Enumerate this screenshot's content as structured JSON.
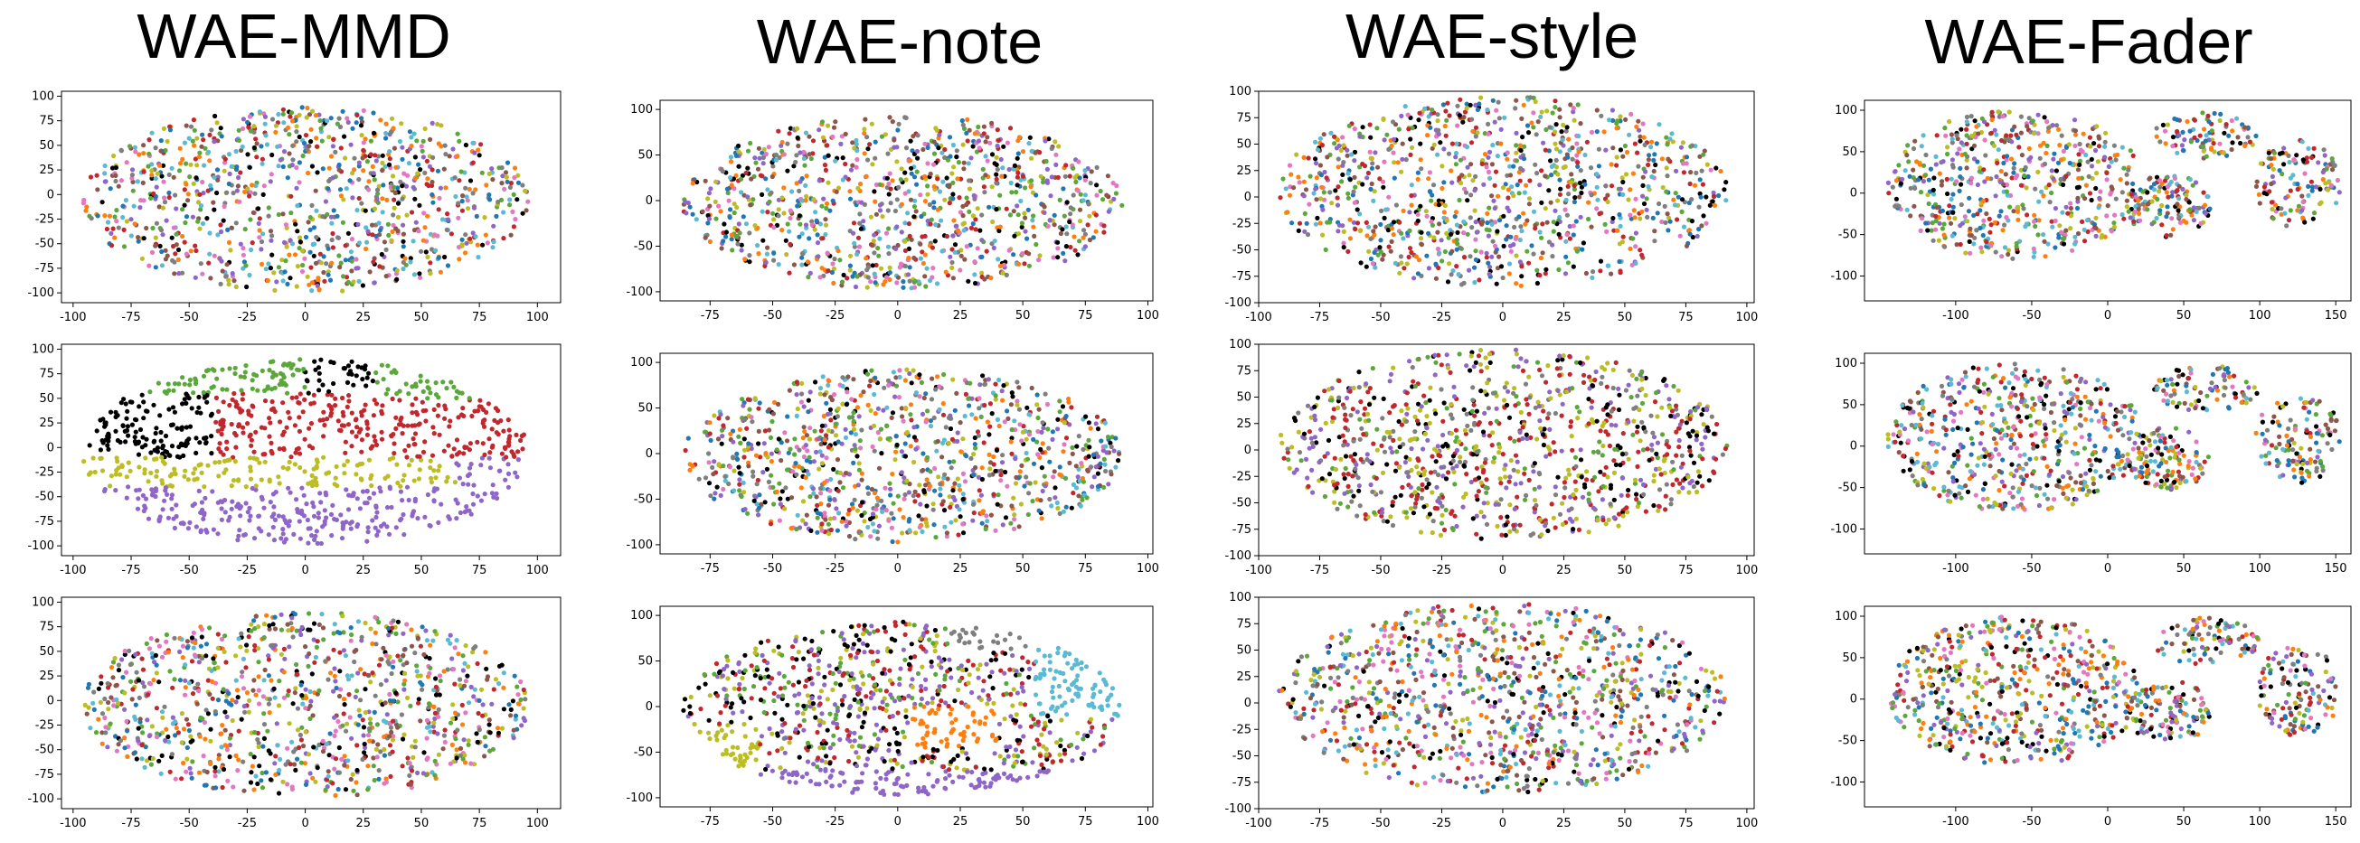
{
  "figure": {
    "columns": [
      "WAE-MMD",
      "WAE-note",
      "WAE-style",
      "WAE-Fader"
    ]
  },
  "colors": {
    "palette": [
      "#1f77b4",
      "#ff7f0e",
      "#2ca02c",
      "#d62728",
      "#9467bd",
      "#8c564b",
      "#e377c2",
      "#7f7f7f",
      "#bcbd22",
      "#17becf"
    ],
    "black": "#000000",
    "green": "#5aa73a",
    "red": "#c1272d",
    "purple": "#8f66c8",
    "olive": "#bcbd22",
    "cyan": "#5bbad3",
    "gray": "#7f7f7f",
    "brown": "#8c564b",
    "orange": "#ff7f0e",
    "pink": "#e377c2",
    "blue": "#1f77b4"
  },
  "chart_data": [
    {
      "type": "scatter",
      "column": "WAE-MMD",
      "row": 1,
      "coloring": "mixed",
      "xlim": [
        -105,
        110
      ],
      "ylim": [
        -110,
        105
      ],
      "x_ticks": [
        -100,
        -75,
        -50,
        -25,
        0,
        25,
        50,
        75,
        100
      ],
      "y_ticks": [
        100,
        75,
        50,
        25,
        0,
        -25,
        -50,
        -75,
        -100
      ]
    },
    {
      "type": "scatter",
      "column": "WAE-note",
      "row": 1,
      "coloring": "mixed",
      "xlim": [
        -95,
        102
      ],
      "ylim": [
        -110,
        110
      ],
      "x_ticks": [
        -75,
        -50,
        -25,
        0,
        25,
        50,
        75,
        100
      ],
      "y_ticks": [
        100,
        50,
        0,
        -50,
        -100
      ]
    },
    {
      "type": "scatter",
      "column": "WAE-style",
      "row": 1,
      "coloring": "mixed",
      "xlim": [
        -100,
        103
      ],
      "ylim": [
        -100,
        100
      ],
      "x_ticks": [
        -100,
        -75,
        -50,
        -25,
        0,
        25,
        50,
        75,
        100
      ],
      "y_ticks": [
        100,
        75,
        50,
        25,
        0,
        -25,
        -50,
        -75,
        -100
      ]
    },
    {
      "type": "scatter",
      "column": "WAE-Fader",
      "row": 1,
      "coloring": "mixed",
      "xlim": [
        -160,
        160
      ],
      "ylim": [
        -130,
        112
      ],
      "x_ticks": [
        -100,
        -50,
        0,
        50,
        100,
        150
      ],
      "y_ticks": [
        100,
        50,
        0,
        -50,
        -100
      ]
    },
    {
      "type": "scatter",
      "column": "WAE-MMD",
      "row": 2,
      "coloring": "clustered",
      "xlim": [
        -105,
        110
      ],
      "ylim": [
        -110,
        105
      ],
      "x_ticks": [
        -100,
        -75,
        -50,
        -25,
        0,
        25,
        50,
        75,
        100
      ],
      "y_ticks": [
        100,
        75,
        50,
        25,
        0,
        -25,
        -50,
        -75,
        -100
      ]
    },
    {
      "type": "scatter",
      "column": "WAE-note",
      "row": 2,
      "coloring": "mixed",
      "xlim": [
        -95,
        102
      ],
      "ylim": [
        -110,
        110
      ],
      "x_ticks": [
        -75,
        -50,
        -25,
        0,
        25,
        50,
        75,
        100
      ],
      "y_ticks": [
        100,
        50,
        0,
        -50,
        -100
      ]
    },
    {
      "type": "scatter",
      "column": "WAE-style",
      "row": 2,
      "coloring": "mixed",
      "xlim": [
        -100,
        103
      ],
      "ylim": [
        -100,
        100
      ],
      "x_ticks": [
        -100,
        -75,
        -50,
        -25,
        0,
        25,
        50,
        75,
        100
      ],
      "y_ticks": [
        100,
        75,
        50,
        25,
        0,
        -25,
        -50,
        -75,
        -100
      ]
    },
    {
      "type": "scatter",
      "column": "WAE-Fader",
      "row": 2,
      "coloring": "mixed",
      "xlim": [
        -160,
        160
      ],
      "ylim": [
        -130,
        112
      ],
      "x_ticks": [
        -100,
        -50,
        0,
        50,
        100,
        150
      ],
      "y_ticks": [
        100,
        50,
        0,
        -50,
        -100
      ]
    },
    {
      "type": "scatter",
      "column": "WAE-MMD",
      "row": 3,
      "coloring": "mixed",
      "xlim": [
        -105,
        110
      ],
      "ylim": [
        -110,
        105
      ],
      "x_ticks": [
        -100,
        -75,
        -50,
        -25,
        0,
        25,
        50,
        75,
        100
      ],
      "y_ticks": [
        100,
        75,
        50,
        25,
        0,
        -25,
        -50,
        -75,
        -100
      ]
    },
    {
      "type": "scatter",
      "column": "WAE-note",
      "row": 3,
      "coloring": "clustered",
      "xlim": [
        -95,
        102
      ],
      "ylim": [
        -110,
        110
      ],
      "x_ticks": [
        -75,
        -50,
        -25,
        0,
        25,
        50,
        75,
        100
      ],
      "y_ticks": [
        100,
        50,
        0,
        -50,
        -100
      ]
    },
    {
      "type": "scatter",
      "column": "WAE-style",
      "row": 3,
      "coloring": "mixed",
      "xlim": [
        -100,
        103
      ],
      "ylim": [
        -100,
        100
      ],
      "x_ticks": [
        -100,
        -75,
        -50,
        -25,
        0,
        25,
        50,
        75,
        100
      ],
      "y_ticks": [
        100,
        75,
        50,
        25,
        0,
        -25,
        -50,
        -75,
        -100
      ]
    },
    {
      "type": "scatter",
      "column": "WAE-Fader",
      "row": 3,
      "coloring": "mixed",
      "xlim": [
        -160,
        160
      ],
      "ylim": [
        -130,
        112
      ],
      "x_ticks": [
        -100,
        -50,
        0,
        50,
        100,
        150
      ],
      "y_ticks": [
        100,
        50,
        0,
        -50,
        -100
      ]
    }
  ]
}
